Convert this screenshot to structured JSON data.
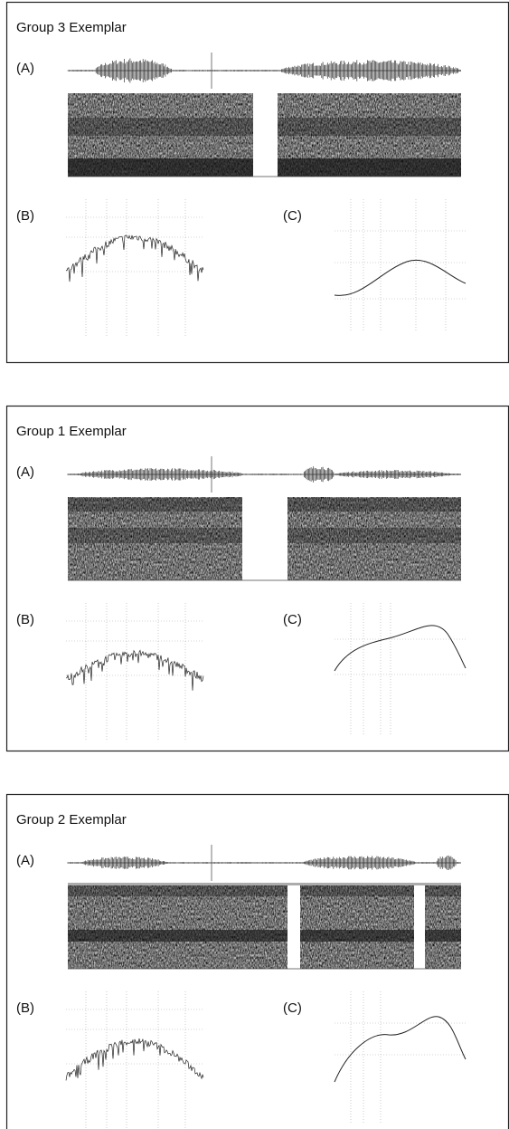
{
  "panels": [
    {
      "title": "Group 3 Exemplar",
      "label_a": "(A)",
      "label_b": "(B)",
      "label_c": "(C)"
    },
    {
      "title": "Group 1 Exemplar",
      "label_a": "(A)",
      "label_b": "(B)",
      "label_c": "(C)"
    },
    {
      "title": "Group 2 Exemplar",
      "label_a": "(A)",
      "label_b": "(B)",
      "label_c": "(C)"
    }
  ]
}
